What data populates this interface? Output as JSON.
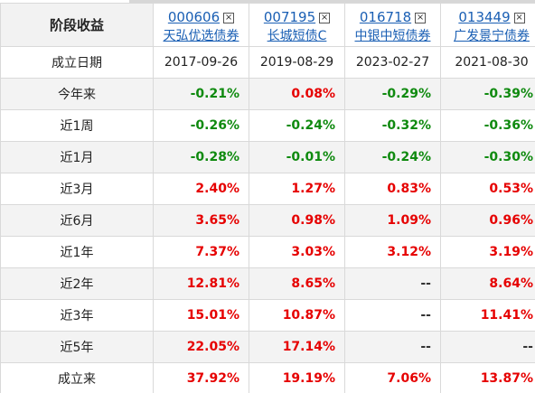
{
  "header": {
    "row_label": "阶段收益",
    "funds": [
      {
        "code": "000606",
        "name": "天弘优选债券",
        "close": "×"
      },
      {
        "code": "007195",
        "name": "长城短债C",
        "close": "×"
      },
      {
        "code": "016718",
        "name": "中银中短债券",
        "close": "×"
      },
      {
        "code": "013449",
        "name": "广发景宁债券",
        "close": "×"
      }
    ]
  },
  "rows": [
    {
      "label": "成立日期",
      "type": "date",
      "values": [
        "2017-09-26",
        "2019-08-29",
        "2023-02-27",
        "2021-08-30"
      ],
      "signs": [
        "",
        "",
        "",
        ""
      ]
    },
    {
      "label": "今年来",
      "type": "val",
      "values": [
        "-0.21%",
        "0.08%",
        "-0.29%",
        "-0.39%"
      ],
      "signs": [
        "neg",
        "pos",
        "neg",
        "neg"
      ]
    },
    {
      "label": "近1周",
      "type": "val",
      "values": [
        "-0.26%",
        "-0.24%",
        "-0.32%",
        "-0.36%"
      ],
      "signs": [
        "neg",
        "neg",
        "neg",
        "neg"
      ]
    },
    {
      "label": "近1月",
      "type": "val",
      "values": [
        "-0.28%",
        "-0.01%",
        "-0.24%",
        "-0.30%"
      ],
      "signs": [
        "neg",
        "neg",
        "neg",
        "neg"
      ]
    },
    {
      "label": "近3月",
      "type": "val",
      "values": [
        "2.40%",
        "1.27%",
        "0.83%",
        "0.53%"
      ],
      "signs": [
        "pos",
        "pos",
        "pos",
        "pos"
      ]
    },
    {
      "label": "近6月",
      "type": "val",
      "values": [
        "3.65%",
        "0.98%",
        "1.09%",
        "0.96%"
      ],
      "signs": [
        "pos",
        "pos",
        "pos",
        "pos"
      ]
    },
    {
      "label": "近1年",
      "type": "val",
      "values": [
        "7.37%",
        "3.03%",
        "3.12%",
        "3.19%"
      ],
      "signs": [
        "pos",
        "pos",
        "pos",
        "pos"
      ]
    },
    {
      "label": "近2年",
      "type": "val",
      "values": [
        "12.81%",
        "8.65%",
        "--",
        "8.64%"
      ],
      "signs": [
        "pos",
        "pos",
        "na",
        "pos"
      ]
    },
    {
      "label": "近3年",
      "type": "val",
      "values": [
        "15.01%",
        "10.87%",
        "--",
        "11.41%"
      ],
      "signs": [
        "pos",
        "pos",
        "na",
        "pos"
      ]
    },
    {
      "label": "近5年",
      "type": "val",
      "values": [
        "22.05%",
        "17.14%",
        "--",
        "--"
      ],
      "signs": [
        "pos",
        "pos",
        "na",
        "na"
      ]
    },
    {
      "label": "成立来",
      "type": "val",
      "values": [
        "37.92%",
        "19.19%",
        "7.06%",
        "13.87%"
      ],
      "signs": [
        "pos",
        "pos",
        "pos",
        "pos"
      ]
    }
  ],
  "colors": {
    "negative": "#0f8a0f",
    "positive": "#e60000",
    "link": "#1a5fb4"
  }
}
